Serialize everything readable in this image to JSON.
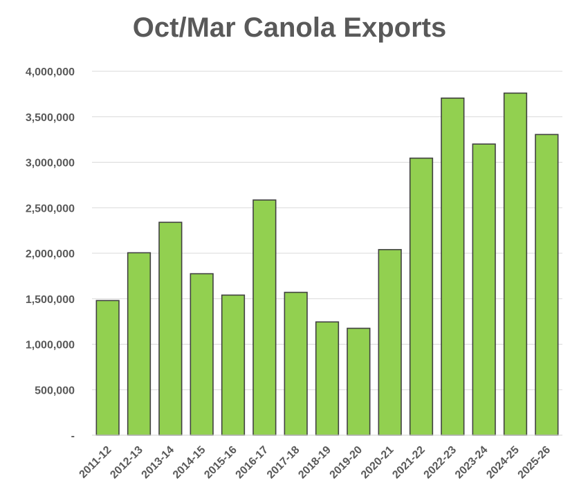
{
  "chart_data": {
    "type": "bar",
    "title": "Oct/Mar Canola Exports",
    "xlabel": "",
    "ylabel": "",
    "categories": [
      "2011-12",
      "2012-13",
      "2013-14",
      "2014-15",
      "2015-16",
      "2016-17",
      "2017-18",
      "2018-19",
      "2019-20",
      "2020-21",
      "2021-22",
      "2022-23",
      "2023-24",
      "2024-25",
      "2025-26"
    ],
    "values": [
      1480000,
      2005000,
      2340000,
      1775000,
      1540000,
      2585000,
      1570000,
      1245000,
      1175000,
      2040000,
      3045000,
      3705000,
      3200000,
      3760000,
      3305000
    ],
    "ylim": [
      0,
      4000000
    ],
    "y_ticks": [
      0,
      500000,
      1000000,
      1500000,
      2000000,
      2500000,
      3000000,
      3500000,
      4000000
    ],
    "y_tick_labels": [
      "-",
      "500,000",
      "1,000,000",
      "1,500,000",
      "2,000,000",
      "2,500,000",
      "3,000,000",
      "3,500,000",
      "4,000,000"
    ],
    "grid": true,
    "legend": "none",
    "colors": {
      "bar_fill": "#92d050",
      "bar_stroke": "#404040",
      "text": "#595959",
      "grid": "#d9d9d9"
    }
  }
}
